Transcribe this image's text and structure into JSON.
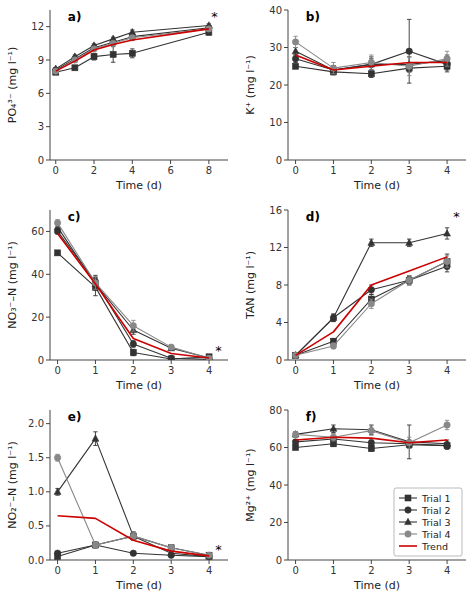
{
  "chart_data": [
    {
      "type": "line",
      "title": "a)",
      "xlabel": "Time (d)",
      "ylabel": "PO₄³⁻ (mg l⁻¹)",
      "xlim": [
        -0.3,
        9
      ],
      "ylim": [
        0,
        13.5
      ],
      "xticks": [
        0,
        2,
        4,
        6,
        8
      ],
      "yticks": [
        0,
        3,
        6,
        9,
        12
      ],
      "grid": false,
      "annotations": [
        {
          "text": "*",
          "x": 8.3,
          "y": 12.5
        }
      ],
      "x": [
        0,
        1,
        2,
        3,
        4,
        8
      ],
      "series": [
        {
          "color": "#333333",
          "marker": "square",
          "values": [
            7.9,
            8.3,
            9.3,
            9.5,
            9.6,
            11.5
          ],
          "errors": [
            0.1,
            0.15,
            0.3,
            0.7,
            0.4,
            0.25
          ]
        },
        {
          "color": "#333333",
          "marker": "circle",
          "values": [
            8.1,
            9.1,
            10.1,
            10.6,
            11.1,
            11.9
          ],
          "errors": [
            0.1,
            0.1,
            0.15,
            0.15,
            0.2,
            0.15
          ]
        },
        {
          "color": "#333333",
          "marker": "triangle",
          "values": [
            8.2,
            9.3,
            10.3,
            10.9,
            11.5,
            12.1
          ],
          "errors": [
            0.1,
            0.15,
            0.15,
            0.15,
            0.2,
            0.15
          ]
        },
        {
          "color": "#888888",
          "marker": "circle",
          "values": [
            8.0,
            9.0,
            10.0,
            10.5,
            11.0,
            11.8
          ],
          "errors": [
            0.1,
            0.1,
            0.15,
            0.15,
            0.2,
            0.2
          ]
        },
        {
          "color": "#cc0000",
          "values": [
            8.0,
            8.9,
            9.9,
            10.4,
            10.8,
            11.8
          ]
        }
      ]
    },
    {
      "type": "line",
      "title": "b)",
      "xlabel": "Time (d)",
      "ylabel": "K⁺ (mg l⁻¹)",
      "xlim": [
        -0.2,
        4.5
      ],
      "ylim": [
        0,
        40
      ],
      "xticks": [
        0,
        1,
        2,
        3,
        4
      ],
      "yticks": [
        0,
        10,
        20,
        30,
        40
      ],
      "grid": false,
      "x": [
        0,
        1,
        2,
        3,
        4
      ],
      "series": [
        {
          "color": "#333333",
          "marker": "square",
          "values": [
            25.0,
            23.5,
            23.0,
            24.5,
            25.0
          ],
          "errors": [
            0.5,
            0.8,
            1.0,
            1.0,
            1.0
          ]
        },
        {
          "color": "#333333",
          "marker": "circle",
          "values": [
            27.0,
            24.0,
            25.5,
            29.0,
            25.5
          ],
          "errors": [
            1.0,
            1.2,
            2.0,
            8.5,
            2.0
          ]
        },
        {
          "color": "#333333",
          "marker": "triangle",
          "values": [
            29.0,
            24.0,
            25.5,
            25.5,
            26.5
          ],
          "errors": [
            1.0,
            1.0,
            1.5,
            2.0,
            1.5
          ]
        },
        {
          "color": "#888888",
          "marker": "circle",
          "values": [
            31.5,
            24.5,
            26.0,
            25.0,
            27.0
          ],
          "errors": [
            1.5,
            1.5,
            2.0,
            2.5,
            2.0
          ]
        },
        {
          "color": "#cc0000",
          "values": [
            28.0,
            24.0,
            25.0,
            26.0,
            26.0
          ]
        }
      ]
    },
    {
      "type": "line",
      "title": "c)",
      "xlabel": "Time (d)",
      "ylabel": "NO₃⁻–N (mg l⁻¹)",
      "xlim": [
        -0.2,
        4.5
      ],
      "ylim": [
        0,
        70
      ],
      "xticks": [
        0,
        1,
        2,
        3,
        4
      ],
      "yticks": [
        0,
        20,
        40,
        60
      ],
      "grid": false,
      "annotations": [
        {
          "text": "*",
          "x": 4.25,
          "y": 2.5
        }
      ],
      "x": [
        0,
        1,
        2,
        3,
        4
      ],
      "series": [
        {
          "color": "#333333",
          "marker": "square",
          "values": [
            50.0,
            34.0,
            3.5,
            0.5,
            1.5
          ],
          "errors": [
            1.0,
            4.0,
            1.5,
            0.3,
            0.5
          ]
        },
        {
          "color": "#333333",
          "marker": "circle",
          "values": [
            60.0,
            36.5,
            7.5,
            0.8,
            0.3
          ],
          "errors": [
            1.0,
            3.0,
            1.5,
            0.3,
            0.2
          ]
        },
        {
          "color": "#333333",
          "marker": "triangle",
          "values": [
            62.0,
            35.5,
            14.0,
            5.5,
            1.0
          ],
          "errors": [
            1.5,
            3.0,
            2.0,
            1.0,
            0.4
          ]
        },
        {
          "color": "#888888",
          "marker": "circle",
          "values": [
            64.0,
            36.0,
            16.0,
            6.0,
            0.8
          ],
          "errors": [
            1.5,
            3.0,
            2.5,
            1.0,
            0.3
          ]
        },
        {
          "color": "#cc0000",
          "values": [
            59.0,
            35.5,
            10.0,
            3.0,
            0.9
          ]
        }
      ]
    },
    {
      "type": "line",
      "title": "d)",
      "xlabel": "Time (d)",
      "ylabel": "TAN (mg l⁻¹)",
      "xlim": [
        -0.2,
        4.5
      ],
      "ylim": [
        0,
        16
      ],
      "xticks": [
        0,
        1,
        2,
        3,
        4
      ],
      "yticks": [
        0,
        4,
        8,
        12,
        16
      ],
      "grid": false,
      "annotations": [
        {
          "text": "*",
          "x": 4.25,
          "y": 14.8
        }
      ],
      "x": [
        0,
        1,
        2,
        3,
        4
      ],
      "series": [
        {
          "color": "#333333",
          "marker": "square",
          "values": [
            0.5,
            2.0,
            6.5,
            8.5,
            10.5
          ],
          "errors": [
            0.1,
            0.3,
            0.5,
            0.5,
            0.8
          ]
        },
        {
          "color": "#333333",
          "marker": "circle",
          "values": [
            0.5,
            4.5,
            7.5,
            8.5,
            10.0
          ],
          "errors": [
            0.1,
            0.4,
            0.5,
            0.4,
            0.6
          ]
        },
        {
          "color": "#333333",
          "marker": "triangle",
          "values": [
            0.5,
            4.5,
            12.5,
            12.5,
            13.5
          ],
          "errors": [
            0.1,
            0.4,
            0.4,
            0.4,
            0.6
          ]
        },
        {
          "color": "#888888",
          "marker": "circle",
          "values": [
            0.5,
            1.5,
            6.0,
            8.5,
            10.5
          ],
          "errors": [
            0.1,
            0.3,
            0.5,
            0.5,
            0.6
          ]
        },
        {
          "color": "#cc0000",
          "values": [
            0.5,
            3.0,
            8.0,
            9.5,
            11.0
          ]
        }
      ]
    },
    {
      "type": "line",
      "title": "e)",
      "xlabel": "Time (d)",
      "ylabel": "NO₂⁻–N (mg l⁻¹)",
      "xlim": [
        -0.2,
        4.5
      ],
      "ylim": [
        0,
        2.2
      ],
      "xticks": [
        0,
        1,
        2,
        3,
        4
      ],
      "yticks": [
        {
          "value": 0,
          "label": "0.0"
        },
        0.5,
        {
          "value": 1,
          "label": "1.0"
        },
        1.5,
        {
          "value": 2,
          "label": "2.0"
        }
      ],
      "grid": false,
      "annotations": [
        {
          "text": "*",
          "x": 4.25,
          "y": 0.09
        }
      ],
      "x": [
        0,
        1,
        2,
        3,
        4
      ],
      "series": [
        {
          "color": "#333333",
          "marker": "square",
          "values": [
            0.05,
            0.22,
            0.35,
            0.18,
            0.07
          ],
          "errors": [
            0.01,
            0.04,
            0.06,
            0.03,
            0.01
          ]
        },
        {
          "color": "#333333",
          "marker": "circle",
          "values": [
            0.1,
            0.22,
            0.1,
            0.07,
            0.05
          ],
          "errors": [
            0.01,
            0.04,
            0.02,
            0.01,
            0.01
          ]
        },
        {
          "color": "#333333",
          "marker": "triangle",
          "values": [
            1.0,
            1.78,
            0.35,
            0.1,
            0.05
          ],
          "errors": [
            0.05,
            0.1,
            0.06,
            0.02,
            0.01
          ]
        },
        {
          "color": "#888888",
          "marker": "circle",
          "values": [
            1.5,
            0.22,
            0.35,
            0.18,
            0.07
          ],
          "errors": [
            0.05,
            0.04,
            0.06,
            0.03,
            0.01
          ]
        },
        {
          "color": "#cc0000",
          "values": [
            0.65,
            0.61,
            0.29,
            0.13,
            0.06
          ]
        }
      ]
    },
    {
      "type": "line",
      "title": "f)",
      "xlabel": "Time (d)",
      "ylabel": "Mg²⁺ (mg l⁻¹)",
      "xlim": [
        -0.2,
        4.5
      ],
      "ylim": [
        0,
        80
      ],
      "xticks": [
        0,
        1,
        2,
        3,
        4
      ],
      "yticks": [
        0,
        20,
        40,
        60,
        80
      ],
      "grid": false,
      "legend": "lower right",
      "x": [
        0,
        1,
        2,
        3,
        4
      ],
      "series": [
        {
          "name": "Trial 1",
          "color": "#333333",
          "marker": "square",
          "values": [
            60.0,
            62.0,
            59.5,
            61.5,
            61.0
          ],
          "errors": [
            1.0,
            1.5,
            1.5,
            2.0,
            2.0
          ]
        },
        {
          "name": "Trial 2",
          "color": "#333333",
          "marker": "circle",
          "values": [
            63.0,
            64.5,
            62.5,
            62.0,
            61.0
          ],
          "errors": [
            1.0,
            1.5,
            1.5,
            2.0,
            1.5
          ]
        },
        {
          "name": "Trial 3",
          "color": "#333333",
          "marker": "triangle",
          "values": [
            67.0,
            70.0,
            69.5,
            63.0,
            62.0
          ],
          "errors": [
            1.5,
            2.0,
            2.5,
            9.0,
            2.0
          ]
        },
        {
          "name": "Trial 4",
          "color": "#888888",
          "marker": "circle",
          "values": [
            67.0,
            65.5,
            69.0,
            62.5,
            72.0
          ],
          "errors": [
            1.5,
            2.0,
            2.5,
            3.0,
            2.5
          ]
        },
        {
          "name": "Trend",
          "color": "#cc0000",
          "values": [
            64.0,
            65.5,
            65.0,
            62.5,
            64.0
          ]
        }
      ]
    }
  ]
}
